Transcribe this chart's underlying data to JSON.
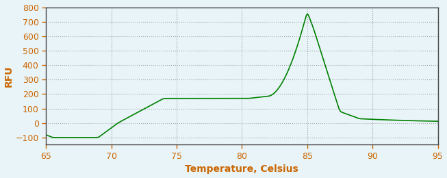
{
  "title": "",
  "xlabel": "Temperature, Celsius",
  "ylabel": "RFU",
  "xlim": [
    65,
    95
  ],
  "ylim": [
    -150,
    800
  ],
  "yticks": [
    -100,
    0,
    100,
    200,
    300,
    400,
    500,
    600,
    700,
    800
  ],
  "xticks": [
    65,
    70,
    75,
    80,
    85,
    90,
    95
  ],
  "line_color": "#008000",
  "bg_color": "#e8f4f8",
  "grid_color": "#888888",
  "axis_label_color": "#cc6600",
  "tick_label_color": "#cc6600",
  "spine_color": "#444444",
  "figsize": [
    6.53,
    2.6
  ],
  "dpi": 100
}
